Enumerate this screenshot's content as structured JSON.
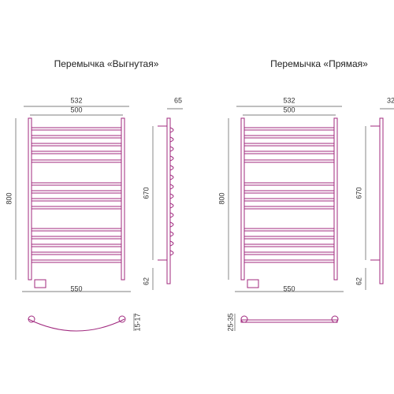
{
  "drawings": [
    {
      "title": "Перемычка «Выгнутая»",
      "width_outer": "532",
      "width_inner": "500",
      "height": "800",
      "width_bottom": "550",
      "depth": "65",
      "axis_distance": "670",
      "bottom_offset": "62",
      "top_view_depth": "15-17"
    },
    {
      "title": "Перемычка «Прямая»",
      "width_outer": "532",
      "width_inner": "500",
      "height": "800",
      "width_bottom": "550",
      "depth": "32",
      "axis_distance": "670",
      "bottom_offset": "62",
      "top_view_depth": "25-35"
    }
  ]
}
